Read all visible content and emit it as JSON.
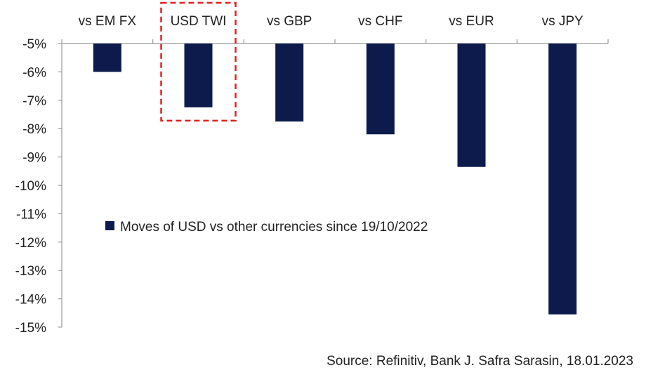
{
  "chart_data": {
    "type": "bar",
    "categories": [
      "vs EM FX",
      "USD TWI",
      "vs GBP",
      "vs CHF",
      "vs EUR",
      "vs JPY"
    ],
    "series": [
      {
        "name": "Moves of USD vs other currencies since 19/10/2022",
        "values": [
          -6.0,
          -7.25,
          -7.75,
          -8.2,
          -9.35,
          -14.55
        ]
      }
    ],
    "ylim": [
      -15,
      -5
    ],
    "yticks": [
      -5,
      -6,
      -7,
      -8,
      -9,
      -10,
      -11,
      -12,
      -13,
      -14,
      -15
    ],
    "ytick_labels": [
      "-5%",
      "-6%",
      "-7%",
      "-8%",
      "-9%",
      "-10%",
      "-11%",
      "-12%",
      "-13%",
      "-14%",
      "-15%"
    ],
    "xlabel": "",
    "ylabel": "",
    "title": "",
    "grid": false,
    "legend_position": "middle-left",
    "highlighted_category": "USD TWI",
    "bar_color": "#0d1b4c",
    "highlight_color": "#e0201f",
    "axis_color": "#999999"
  },
  "source": "Source: Refinitiv, Bank J. Safra Sarasin, 18.01.2023"
}
